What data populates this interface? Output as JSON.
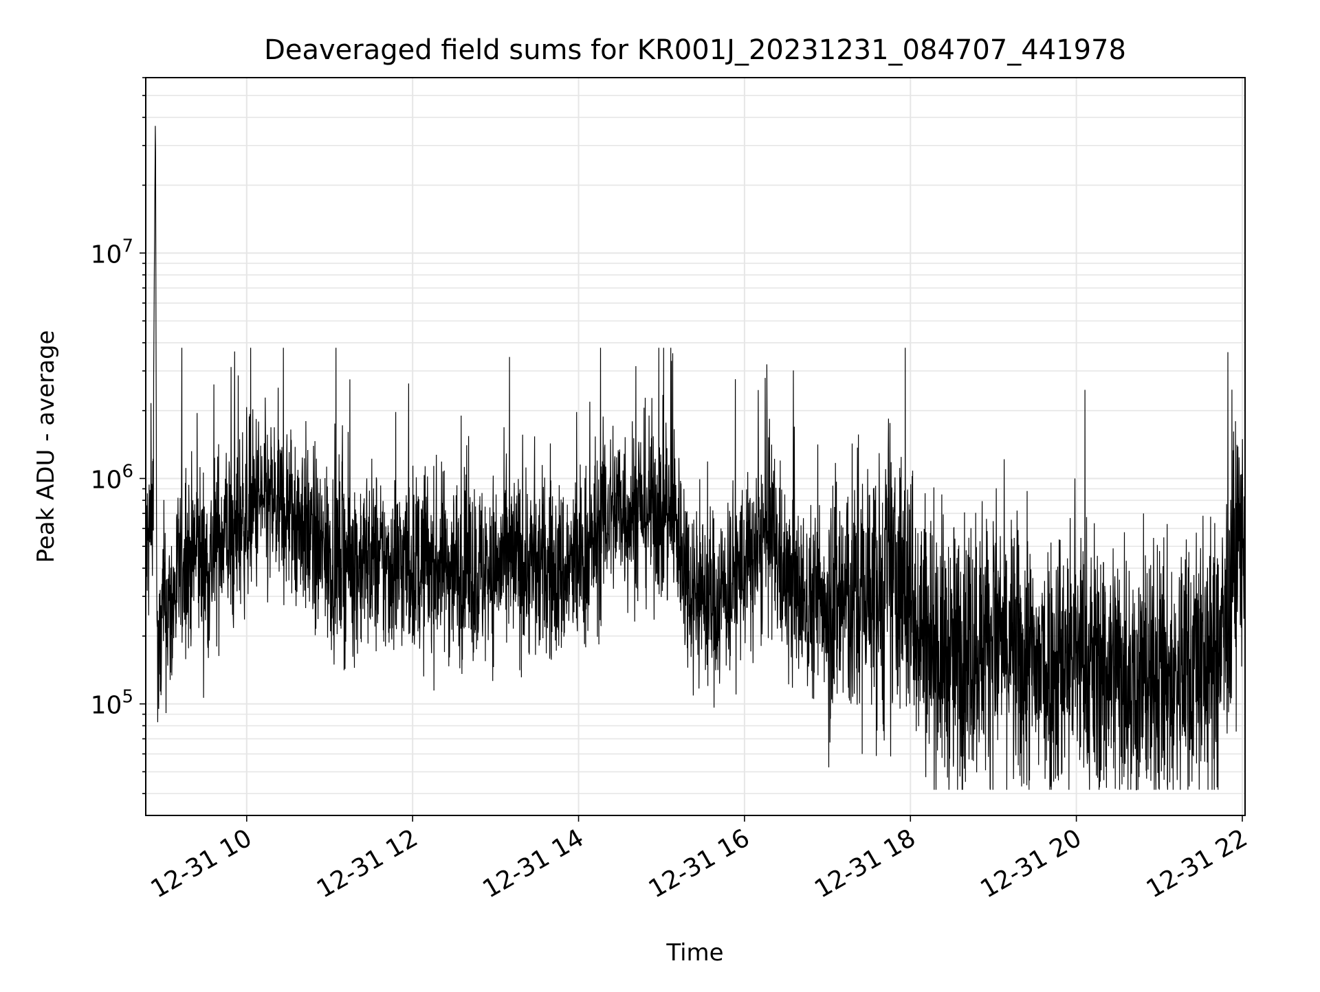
{
  "chart_data": {
    "type": "line",
    "title": "Deaveraged field sums for KR001J_20231231_084707_441978",
    "xlabel": "Time",
    "ylabel": "Peak ADU - average",
    "y_scale": "log",
    "grid": true,
    "legend": "none",
    "line_color": "#000000",
    "grid_color": "#e6e6e6",
    "x_range": [
      "2023-12-31 08:47",
      "2023-12-31 22:02"
    ],
    "y_range": [
      32000,
      60000000
    ],
    "x_ticks": [
      {
        "value": "2023-12-31 10:00",
        "label": "12-31 10"
      },
      {
        "value": "2023-12-31 12:00",
        "label": "12-31 12"
      },
      {
        "value": "2023-12-31 14:00",
        "label": "12-31 14"
      },
      {
        "value": "2023-12-31 16:00",
        "label": "12-31 16"
      },
      {
        "value": "2023-12-31 18:00",
        "label": "12-31 18"
      },
      {
        "value": "2023-12-31 20:00",
        "label": "12-31 20"
      },
      {
        "value": "2023-12-31 22:00",
        "label": "12-31 22"
      }
    ],
    "y_ticks": [
      {
        "value": 100000,
        "base": "10",
        "exp": "5"
      },
      {
        "value": 1000000,
        "base": "10",
        "exp": "6"
      },
      {
        "value": 10000000,
        "base": "10",
        "exp": "7"
      }
    ],
    "series": [
      {
        "x": [
          "2023-12-31 08:47",
          "2023-12-31 08:52",
          "2023-12-31 08:54",
          "2023-12-31 08:55",
          "2023-12-31 08:56",
          "2023-12-31 08:58",
          "2023-12-31 09:00",
          "2023-12-31 09:05",
          "2023-12-31 09:10",
          "2023-12-31 09:15",
          "2023-12-31 09:20",
          "2023-12-31 09:25",
          "2023-12-31 09:30",
          "2023-12-31 09:35",
          "2023-12-31 09:40",
          "2023-12-31 09:45",
          "2023-12-31 09:50",
          "2023-12-31 09:55",
          "2023-12-31 10:00",
          "2023-12-31 10:05",
          "2023-12-31 10:10",
          "2023-12-31 10:15",
          "2023-12-31 10:20",
          "2023-12-31 10:25",
          "2023-12-31 10:30",
          "2023-12-31 10:35",
          "2023-12-31 10:40",
          "2023-12-31 10:45",
          "2023-12-31 10:50",
          "2023-12-31 10:55",
          "2023-12-31 11:00",
          "2023-12-31 11:10",
          "2023-12-31 11:20",
          "2023-12-31 11:30",
          "2023-12-31 11:40",
          "2023-12-31 11:50",
          "2023-12-31 12:00",
          "2023-12-31 12:10",
          "2023-12-31 12:20",
          "2023-12-31 12:30",
          "2023-12-31 12:40",
          "2023-12-31 12:50",
          "2023-12-31 13:00",
          "2023-12-31 13:10",
          "2023-12-31 13:20",
          "2023-12-31 13:30",
          "2023-12-31 13:40",
          "2023-12-31 13:50",
          "2023-12-31 14:00",
          "2023-12-31 14:10",
          "2023-12-31 14:20",
          "2023-12-31 14:30",
          "2023-12-31 14:40",
          "2023-12-31 14:50",
          "2023-12-31 15:00",
          "2023-12-31 15:10",
          "2023-12-31 15:20",
          "2023-12-31 15:30",
          "2023-12-31 15:40",
          "2023-12-31 15:50",
          "2023-12-31 16:00",
          "2023-12-31 16:10",
          "2023-12-31 16:20",
          "2023-12-31 16:30",
          "2023-12-31 16:40",
          "2023-12-31 16:50",
          "2023-12-31 17:00",
          "2023-12-31 17:10",
          "2023-12-31 17:20",
          "2023-12-31 17:30",
          "2023-12-31 17:40",
          "2023-12-31 17:50",
          "2023-12-31 18:00",
          "2023-12-31 18:10",
          "2023-12-31 18:20",
          "2023-12-31 18:30",
          "2023-12-31 18:40",
          "2023-12-31 18:50",
          "2023-12-31 19:00",
          "2023-12-31 19:10",
          "2023-12-31 19:20",
          "2023-12-31 19:30",
          "2023-12-31 19:40",
          "2023-12-31 19:50",
          "2023-12-31 20:00",
          "2023-12-31 20:10",
          "2023-12-31 20:20",
          "2023-12-31 20:30",
          "2023-12-31 20:40",
          "2023-12-31 20:50",
          "2023-12-31 21:00",
          "2023-12-31 21:10",
          "2023-12-31 21:20",
          "2023-12-31 21:30",
          "2023-12-31 21:40",
          "2023-12-31 21:50",
          "2023-12-31 21:55",
          "2023-12-31 22:00",
          "2023-12-31 22:02"
        ],
        "y": [
          450000,
          650000,
          44000000,
          250000,
          120000,
          200000,
          280000,
          250000,
          350000,
          450000,
          420000,
          500000,
          380000,
          450000,
          550000,
          600000,
          500000,
          650000,
          700000,
          750000,
          800000,
          700000,
          750000,
          700000,
          750000,
          600000,
          700000,
          550000,
          500000,
          450000,
          450000,
          450000,
          420000,
          450000,
          400000,
          420000,
          420000,
          400000,
          420000,
          400000,
          400000,
          380000,
          400000,
          420000,
          420000,
          400000,
          380000,
          380000,
          420000,
          500000,
          700000,
          750000,
          700000,
          750000,
          700000,
          650000,
          350000,
          300000,
          280000,
          350000,
          400000,
          450000,
          550000,
          350000,
          300000,
          280000,
          300000,
          300000,
          280000,
          320000,
          300000,
          350000,
          300000,
          220000,
          180000,
          150000,
          180000,
          200000,
          200000,
          180000,
          150000,
          140000,
          150000,
          160000,
          170000,
          150000,
          140000,
          150000,
          130000,
          120000,
          130000,
          120000,
          150000,
          160000,
          140000,
          250000,
          450000,
          600000,
          500000
        ]
      }
    ]
  }
}
